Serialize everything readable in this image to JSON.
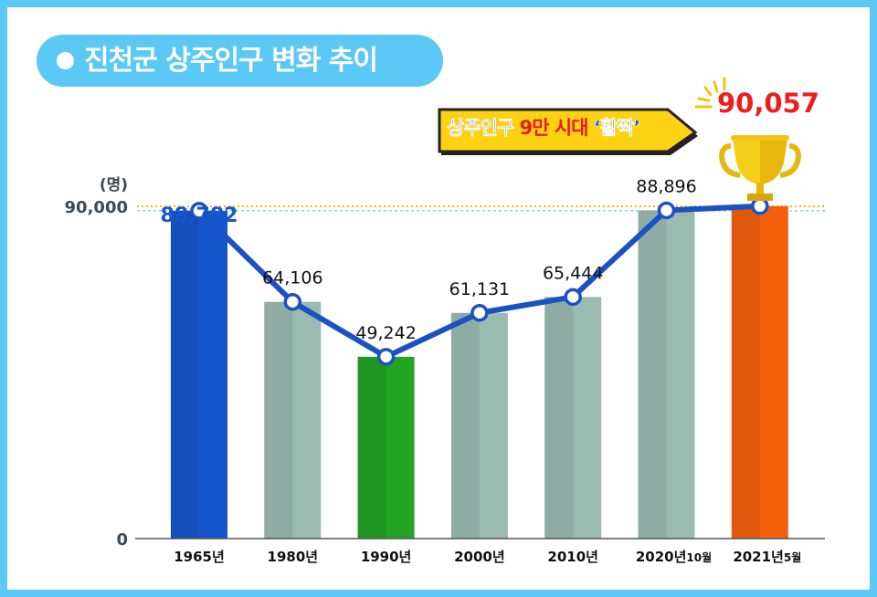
{
  "title": "진천군 상주인구 변화 추이",
  "banner": {
    "part1": "상주인구",
    "part2": "9만 시대",
    "part3": "‘활짝’"
  },
  "highlight_value": "90,057",
  "colors": {
    "frame": "#5cc8f6",
    "bar_default": "#9bbbb1",
    "bar_1965": "#1656cc",
    "bar_1990": "#22a324",
    "bar_2021": "#f2600c",
    "line": "#1a52c4",
    "max_line": "#f2b418",
    "ref_line": "#7fd2ea"
  },
  "chart_data": {
    "type": "bar",
    "ylabel": "(명)",
    "ylim": [
      0,
      90000
    ],
    "yticks": [
      {
        "value": 0,
        "label": "0"
      },
      {
        "value": 90000,
        "label": "90,000"
      }
    ],
    "categories": [
      {
        "main": "1965년",
        "sub": ""
      },
      {
        "main": "1980년",
        "sub": ""
      },
      {
        "main": "1990년",
        "sub": ""
      },
      {
        "main": "2000년",
        "sub": ""
      },
      {
        "main": "2010년",
        "sub": ""
      },
      {
        "main": "2020년",
        "sub": "10월"
      },
      {
        "main": "2021년",
        "sub": "5월"
      }
    ],
    "values": [
      88782,
      64106,
      49242,
      61131,
      65444,
      88896,
      90057
    ],
    "labels": [
      "88,782",
      "64,106",
      "49,242",
      "61,131",
      "65,444",
      "88,896",
      ""
    ],
    "overlay_line": true,
    "reference_lines": [
      90000,
      88782
    ],
    "grid": false
  }
}
